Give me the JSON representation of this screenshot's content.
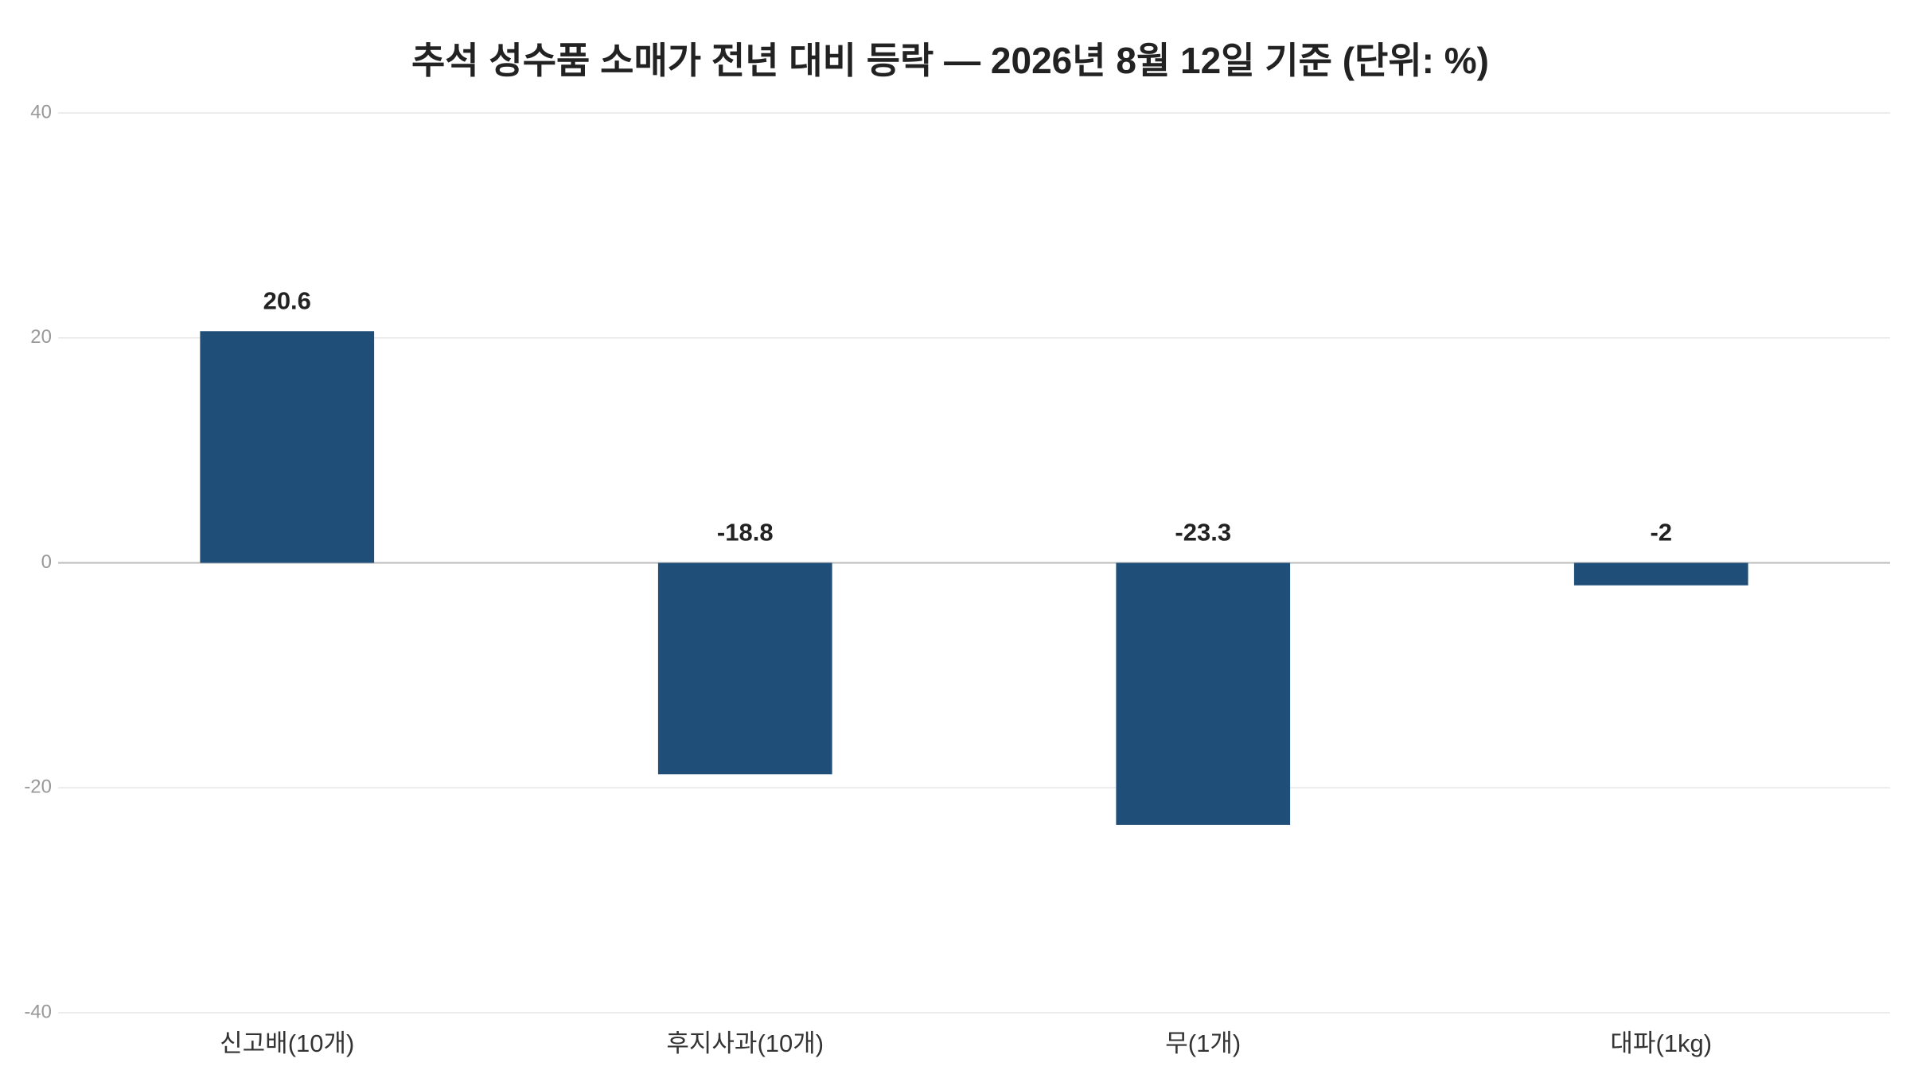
{
  "chart_data": {
    "type": "bar",
    "title": "추석 성수품 소매가 전년 대비 등락 — 2026년 8월 12일 기준 (단위: %)",
    "categories": [
      "신고배(10개)",
      "후지사과(10개)",
      "무(1개)",
      "대파(1kg)"
    ],
    "values": [
      20.6,
      -18.8,
      -23.3,
      -2
    ],
    "color": "#1f4e79",
    "ylim": [
      -40,
      40
    ],
    "yticks": [
      -40,
      -20,
      0,
      20,
      40
    ],
    "grid": true
  }
}
